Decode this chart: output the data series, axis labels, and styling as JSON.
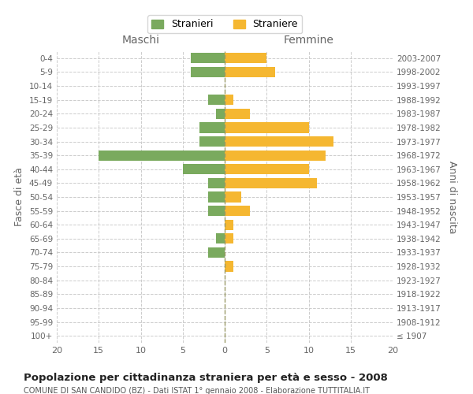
{
  "age_groups": [
    "0-4",
    "5-9",
    "10-14",
    "15-19",
    "20-24",
    "25-29",
    "30-34",
    "35-39",
    "40-44",
    "45-49",
    "50-54",
    "55-59",
    "60-64",
    "65-69",
    "70-74",
    "75-79",
    "80-84",
    "85-89",
    "90-94",
    "95-99",
    "100+"
  ],
  "birth_years": [
    "2003-2007",
    "1998-2002",
    "1993-1997",
    "1988-1992",
    "1983-1987",
    "1978-1982",
    "1973-1977",
    "1968-1972",
    "1963-1967",
    "1958-1962",
    "1953-1957",
    "1948-1952",
    "1943-1947",
    "1938-1942",
    "1933-1937",
    "1928-1932",
    "1923-1927",
    "1918-1922",
    "1913-1917",
    "1908-1912",
    "≤ 1907"
  ],
  "males": [
    4,
    4,
    0,
    2,
    1,
    3,
    3,
    15,
    5,
    2,
    2,
    2,
    0,
    1,
    2,
    0,
    0,
    0,
    0,
    0,
    0
  ],
  "females": [
    5,
    6,
    0,
    1,
    3,
    10,
    13,
    12,
    10,
    11,
    2,
    3,
    1,
    1,
    0,
    1,
    0,
    0,
    0,
    0,
    0
  ],
  "male_color": "#7aaa5e",
  "female_color": "#f5b731",
  "title": "Popolazione per cittadinanza straniera per età e sesso - 2008",
  "subtitle": "COMUNE DI SAN CANDIDO (BZ) - Dati ISTAT 1° gennaio 2008 - Elaborazione TUTTITALIA.IT",
  "ylabel_left": "Fasce di età",
  "ylabel_right": "Anni di nascita",
  "xlim": 20,
  "legend_male": "Stranieri",
  "legend_female": "Straniere",
  "maschi_label": "Maschi",
  "femmine_label": "Femmine",
  "background_color": "#ffffff",
  "grid_color": "#cccccc",
  "label_color": "#666666"
}
